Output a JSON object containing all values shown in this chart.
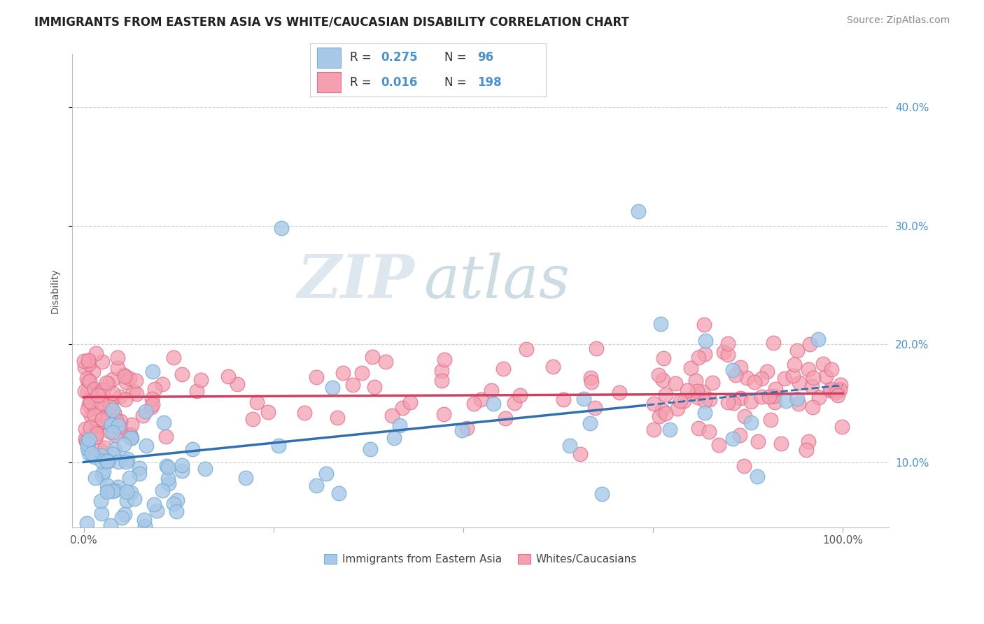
{
  "title": "IMMIGRANTS FROM EASTERN ASIA VS WHITE/CAUCASIAN DISABILITY CORRELATION CHART",
  "source": "Source: ZipAtlas.com",
  "ylabel": "Disability",
  "y_tick_vals": [
    0.1,
    0.2,
    0.3,
    0.4
  ],
  "y_tick_labels": [
    "10.0%",
    "20.0%",
    "30.0%",
    "40.0%"
  ],
  "x_tick_vals": [
    0.0,
    0.25,
    0.5,
    0.75,
    1.0
  ],
  "x_tick_labels": [
    "0.0%",
    "",
    "",
    "",
    "100.0%"
  ],
  "xlim": [
    -0.015,
    1.06
  ],
  "ylim": [
    0.045,
    0.445
  ],
  "legend_r1": "0.275",
  "legend_n1": "96",
  "legend_r2": "0.016",
  "legend_n2": "198",
  "color_blue": "#a8c8e8",
  "color_blue_edge": "#7aafd4",
  "color_blue_line": "#3070b0",
  "color_pink": "#f4a0b0",
  "color_pink_edge": "#e07090",
  "color_pink_line": "#d04060",
  "color_legend_blue": "#4a90d0",
  "watermark_zip": "#c8d8e8",
  "watermark_atlas": "#c8d8e8",
  "legend_label1": "Immigrants from Eastern Asia",
  "legend_label2": "Whites/Caucasians",
  "background_color": "#ffffff",
  "grid_color": "#cccccc",
  "title_fontsize": 12,
  "source_fontsize": 10,
  "tick_fontsize": 11,
  "ylabel_fontsize": 10
}
